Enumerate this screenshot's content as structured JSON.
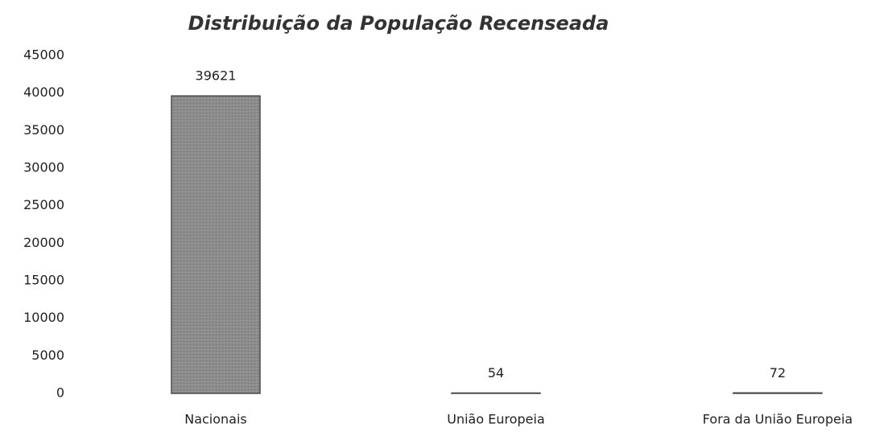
{
  "chart_data": {
    "type": "bar",
    "title": "Distribuição da População Recenseada",
    "categories": [
      "Nacionais",
      "União Europeia",
      "Fora da União Europeia"
    ],
    "values": [
      39621,
      54,
      72
    ],
    "color": "#8c8c8c",
    "ylim": [
      0,
      45000
    ],
    "yticks": [
      0,
      5000,
      10000,
      15000,
      20000,
      25000,
      30000,
      35000,
      40000,
      45000
    ],
    "grid": false
  }
}
